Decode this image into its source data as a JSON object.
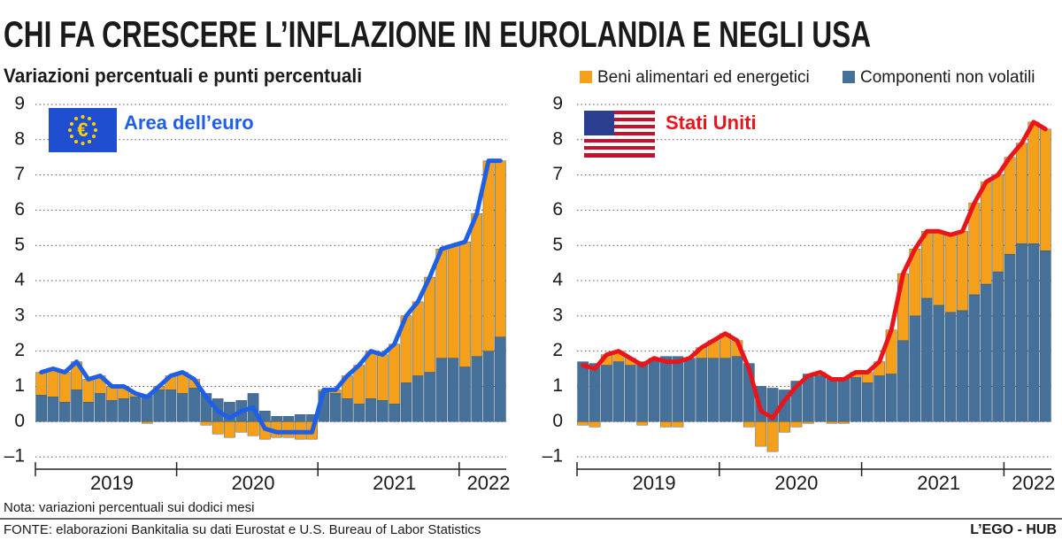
{
  "title": "CHI FA CRESCERE L’INFLAZIONE IN EUROLANDIA E NEGLI USA",
  "subtitle": "Variazioni percentuali e punti percentuali",
  "note": "Nota: variazioni percentuali sui dodici mesi",
  "source": "FONTE: elaborazioni Bankitalia su dati Eurostat e U.S. Bureau of Labor Statistics",
  "brand": "L’EGO - HUB",
  "chart_data": [
    {
      "type": "bar",
      "stacked": true,
      "label": "Area dell’euro",
      "label_color": "#1f5fe6",
      "categories": [
        null,
        null,
        null,
        null,
        null,
        null,
        "2019",
        null,
        null,
        null,
        null,
        null,
        null,
        null,
        null,
        null,
        null,
        null,
        "2020",
        null,
        null,
        null,
        null,
        null,
        null,
        null,
        null,
        null,
        null,
        null,
        "2021",
        null,
        null,
        null,
        null,
        null,
        null,
        null,
        "2022",
        null
      ],
      "series": [
        {
          "color": "#44709a",
          "values": [
            0.75,
            0.7,
            0.55,
            0.9,
            0.55,
            0.8,
            0.6,
            0.65,
            0.7,
            0.75,
            0.9,
            0.9,
            0.8,
            0.95,
            0.8,
            0.65,
            0.55,
            0.6,
            0.8,
            0.3,
            0.15,
            0.15,
            0.2,
            0.2,
            0.85,
            0.8,
            0.65,
            0.5,
            0.65,
            0.6,
            0.5,
            1.1,
            1.3,
            1.4,
            1.8,
            1.8,
            1.55,
            1.85,
            2.0,
            2.4
          ]
        },
        {
          "color": "#f5a01a",
          "values": [
            0.65,
            0.8,
            0.85,
            0.8,
            0.65,
            0.5,
            0.4,
            0.35,
            0.1,
            -0.05,
            0.1,
            0.4,
            0.6,
            0.25,
            -0.1,
            -0.35,
            -0.45,
            -0.3,
            -0.4,
            -0.5,
            -0.45,
            -0.45,
            -0.5,
            -0.5,
            0.05,
            0.1,
            0.65,
            1.1,
            1.35,
            1.3,
            1.7,
            1.9,
            2.1,
            2.7,
            3.1,
            3.2,
            3.55,
            4.05,
            5.4,
            5.0
          ]
        }
      ],
      "line": {
        "color": "#1f5fe6",
        "values": [
          1.4,
          1.5,
          1.4,
          1.7,
          1.2,
          1.3,
          1.0,
          1.0,
          0.8,
          0.7,
          1.0,
          1.3,
          1.4,
          1.2,
          0.7,
          0.3,
          0.1,
          0.3,
          0.4,
          -0.2,
          -0.3,
          -0.3,
          -0.3,
          -0.3,
          0.9,
          0.9,
          1.3,
          1.6,
          2.0,
          1.9,
          2.2,
          3.0,
          3.4,
          4.1,
          4.9,
          5.0,
          5.1,
          5.9,
          7.4,
          7.4
        ]
      },
      "ylim": [
        -1.35,
        9.2
      ],
      "yticks": [
        {
          "value": -1,
          "label": "–1"
        },
        0,
        1,
        2,
        3,
        4,
        5,
        6,
        7,
        8,
        9
      ],
      "grid": true
    },
    {
      "type": "bar",
      "stacked": true,
      "label": "Stati Uniti",
      "label_color": "#e8161b",
      "categories": [
        null,
        null,
        null,
        null,
        null,
        null,
        "2019",
        null,
        null,
        null,
        null,
        null,
        null,
        null,
        null,
        null,
        null,
        null,
        "2020",
        null,
        null,
        null,
        null,
        null,
        null,
        null,
        null,
        null,
        null,
        null,
        "2021",
        null,
        null,
        null,
        null,
        null,
        null,
        null,
        "2022",
        null
      ],
      "series": [
        {
          "name": "Componenti non volatili",
          "color": "#44709a",
          "values": [
            1.7,
            1.65,
            1.6,
            1.7,
            1.6,
            1.7,
            1.75,
            1.85,
            1.85,
            1.8,
            1.8,
            1.8,
            1.8,
            1.85,
            1.65,
            1.0,
            0.95,
            0.9,
            1.15,
            1.35,
            1.3,
            1.25,
            1.25,
            1.25,
            1.1,
            1.3,
            1.35,
            2.3,
            3.0,
            3.5,
            3.3,
            3.1,
            3.15,
            3.6,
            3.9,
            4.25,
            4.75,
            5.05,
            5.05,
            4.85
          ]
        },
        {
          "name": "Beni alimentari ed energetici",
          "color": "#f5a01a",
          "values": [
            -0.1,
            -0.15,
            0.3,
            0.3,
            0.2,
            -0.1,
            0.05,
            -0.15,
            -0.15,
            0,
            0.3,
            0.5,
            0.7,
            0.45,
            -0.15,
            -0.7,
            -0.85,
            -0.3,
            -0.15,
            -0.05,
            0.1,
            -0.05,
            -0.05,
            0.15,
            0.3,
            0.4,
            1.25,
            1.9,
            1.9,
            1.9,
            2.1,
            2.2,
            2.25,
            2.6,
            2.9,
            2.75,
            2.75,
            2.85,
            3.45,
            3.45
          ]
        }
      ],
      "line": {
        "color": "#e8161b",
        "values": [
          1.6,
          1.5,
          1.9,
          2.0,
          1.8,
          1.6,
          1.8,
          1.7,
          1.7,
          1.8,
          2.1,
          2.3,
          2.5,
          2.3,
          1.5,
          0.3,
          0.1,
          0.6,
          1.0,
          1.3,
          1.4,
          1.2,
          1.2,
          1.4,
          1.4,
          1.7,
          2.6,
          4.2,
          4.9,
          5.4,
          5.4,
          5.3,
          5.4,
          6.2,
          6.8,
          7.0,
          7.5,
          7.9,
          8.5,
          8.3
        ]
      },
      "ylim": [
        -1.35,
        9.2
      ],
      "yticks": [
        {
          "value": -1,
          "label": "–1"
        },
        0,
        1,
        2,
        3,
        4,
        5,
        6,
        7,
        8,
        9
      ],
      "grid": true
    }
  ]
}
